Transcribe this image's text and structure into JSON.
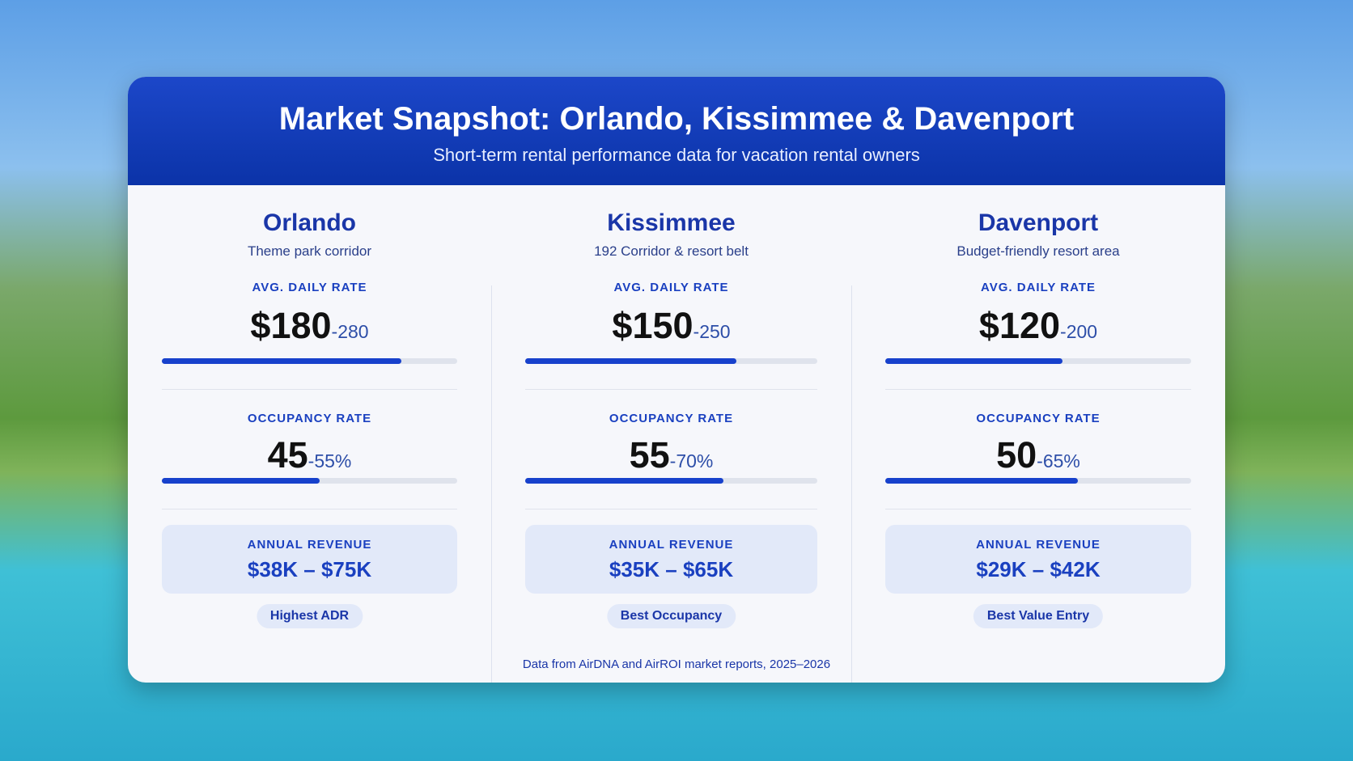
{
  "header": {
    "title": "Market Snapshot: Orlando, Kissimmee & Davenport",
    "subtitle": "Short-term rental performance data for vacation rental owners"
  },
  "markets": [
    {
      "name": "Orlando",
      "tagline": "Theme park corridor",
      "adr_label": "AVG. DAILY RATE",
      "adr": "$180",
      "adr_high": "-280",
      "occ_label": "OCCUPANCY RATE",
      "occ": "45",
      "occ_high": "-55%",
      "rev_label": "ANNUAL REVENUE",
      "revenue": "$38K – $75K",
      "badge": "Highest ADR"
    },
    {
      "name": "Kissimmee",
      "tagline": "192 Corridor & resort belt",
      "adr_label": "AVG. DAILY RATE",
      "adr": "$150",
      "adr_high": "-250",
      "occ_label": "OCCUPANCY RATE",
      "occ": "55",
      "occ_high": "-70%",
      "rev_label": "ANNUAL REVENUE",
      "revenue": "$35K – $65K",
      "badge": "Best Occupancy"
    },
    {
      "name": "Davenport",
      "tagline": "Budget-friendly resort area",
      "adr_label": "AVG. DAILY RATE",
      "adr": "$120",
      "adr_high": "-200",
      "occ_label": "OCCUPANCY RATE",
      "occ": "50",
      "occ_high": "-65%",
      "rev_label": "ANNUAL REVENUE",
      "revenue": "$29K – $42K",
      "badge": "Best Value Entry"
    }
  ],
  "footer": "Data from AirDNA and AirROI market reports, 2025–2026"
}
